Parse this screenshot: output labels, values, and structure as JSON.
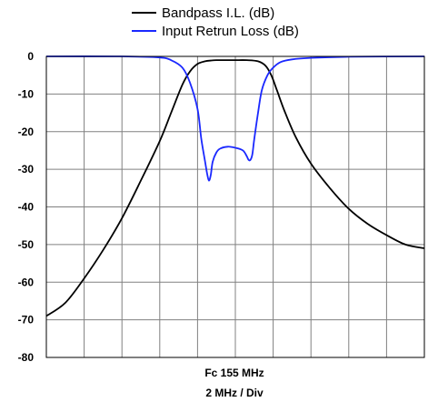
{
  "chart_data": {
    "type": "line",
    "legend": {
      "placement": "top-center",
      "entries": [
        {
          "label": "Bandpass I.L. (dB)",
          "color": "#000000"
        },
        {
          "label": "Input Retrun Loss (dB)",
          "color": "#1a28ff"
        }
      ]
    },
    "xlabel_lines": [
      "Fc 155 MHz",
      "2 MHz / Div"
    ],
    "x_unit_divisions": 10,
    "xlim": [
      0,
      10
    ],
    "ylim": [
      -80,
      0
    ],
    "yticks": [
      0,
      -10,
      -20,
      -30,
      -40,
      -50,
      -60,
      -70,
      -80
    ],
    "ytick_labels": [
      "0",
      "-10",
      "-20",
      "-30",
      "-40",
      "-50",
      "-60",
      "-70",
      "-80"
    ],
    "grid": true,
    "grid_color": "#808080",
    "series": [
      {
        "name": "Bandpass I.L. (dB)",
        "color": "#000000",
        "x": [
          0.0,
          0.5,
          1.0,
          1.5,
          2.0,
          2.5,
          3.0,
          3.3,
          3.6,
          3.8,
          4.0,
          4.2,
          4.35,
          4.5,
          4.8,
          5.0,
          5.3,
          5.6,
          5.8,
          5.95,
          6.1,
          6.3,
          6.6,
          7.0,
          7.5,
          8.0,
          8.5,
          9.0,
          9.5,
          10.0
        ],
        "y": [
          -69,
          -65.5,
          -59,
          -51.5,
          -43,
          -33,
          -22.5,
          -15,
          -7.5,
          -4,
          -2,
          -1.3,
          -1.1,
          -1,
          -1,
          -1,
          -1,
          -1.3,
          -2.5,
          -5,
          -9,
          -14.5,
          -21.5,
          -28.5,
          -35,
          -40.5,
          -44.5,
          -47.5,
          -50,
          -51
        ]
      },
      {
        "name": "Input Retrun Loss (dB)",
        "color": "#1a28ff",
        "x": [
          0.0,
          2.0,
          3.0,
          3.3,
          3.6,
          3.8,
          4.0,
          4.1,
          4.2,
          4.25,
          4.3,
          4.35,
          4.4,
          4.5,
          4.6,
          4.8,
          5.0,
          5.2,
          5.3,
          5.35,
          5.4,
          5.45,
          5.5,
          5.6,
          5.7,
          5.85,
          6.0,
          6.2,
          6.5,
          7.0,
          8.0,
          10.0
        ],
        "y": [
          0,
          0,
          -0.3,
          -1,
          -3,
          -7,
          -14,
          -22,
          -28,
          -31,
          -33,
          -31.5,
          -28,
          -25.5,
          -24.5,
          -24,
          -24.3,
          -25,
          -26.5,
          -27.5,
          -27.5,
          -26,
          -22,
          -15,
          -9,
          -5,
          -3,
          -1.5,
          -0.8,
          -0.4,
          -0.1,
          0
        ]
      }
    ]
  }
}
